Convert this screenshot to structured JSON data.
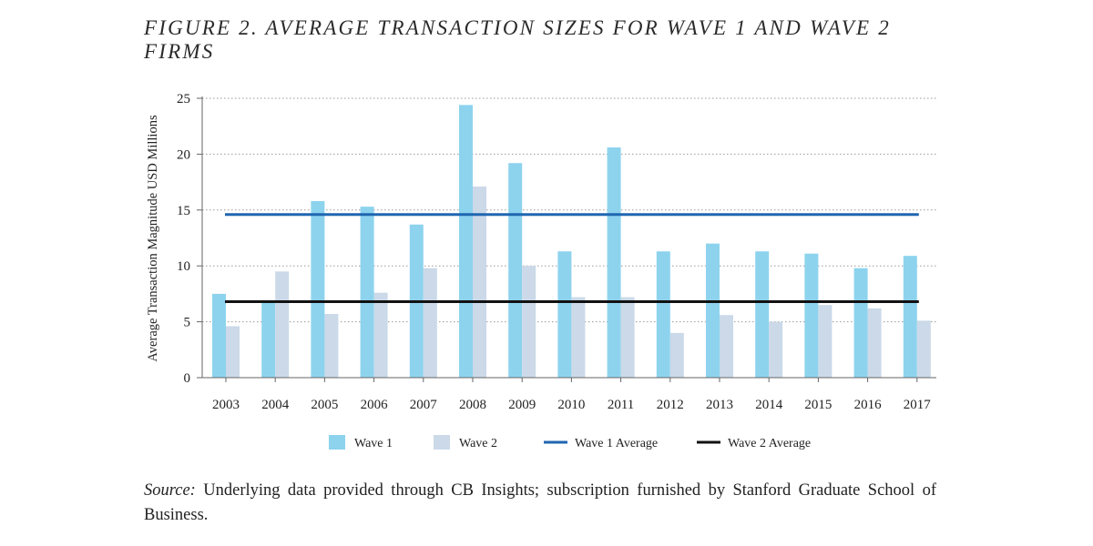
{
  "figure_title": "FIGURE 2. AVERAGE TRANSACTION SIZES FOR WAVE 1 AND WAVE 2 FIRMS",
  "source_label": "Source:",
  "source_text": " Underlying data provided through CB Insights; subscription furnished by Stanford Graduate School of Business.",
  "colors": {
    "wave1": "#8dd3ee",
    "wave2": "#cbd9e8",
    "wave1_avg": "#1f66b0",
    "wave2_avg": "#111111",
    "grid": "#9a9a9a",
    "axis": "#666666"
  },
  "chart_data": {
    "type": "bar",
    "title": "FIGURE 2. AVERAGE TRANSACTION SIZES FOR WAVE 1 AND WAVE 2 FIRMS",
    "xlabel": "",
    "ylabel": "Average Transaction Magnitude USD Millions",
    "ylim": [
      0,
      25
    ],
    "yticks": [
      "0",
      "5",
      "10",
      "15",
      "20",
      "25"
    ],
    "grid": "horizontal dotted",
    "legend_position": "bottom",
    "categories": [
      "2003",
      "2004",
      "2005",
      "2006",
      "2007",
      "2008",
      "2009",
      "2010",
      "2011",
      "2012",
      "2013",
      "2014",
      "2015",
      "2016",
      "2017"
    ],
    "series": [
      {
        "name": "Wave 1",
        "type": "bar",
        "values": [
          7.5,
          6.9,
          15.8,
          15.3,
          13.7,
          24.4,
          19.2,
          11.3,
          20.6,
          11.3,
          12.0,
          11.3,
          11.1,
          9.8,
          10.9
        ]
      },
      {
        "name": "Wave 2",
        "type": "bar",
        "values": [
          4.6,
          9.5,
          5.7,
          7.6,
          9.8,
          17.1,
          10.0,
          7.2,
          7.2,
          4.0,
          5.6,
          5.0,
          6.5,
          6.2,
          5.1
        ]
      },
      {
        "name": "Wave 1 Average",
        "type": "line",
        "value": 14.6
      },
      {
        "name": "Wave 2 Average",
        "type": "line",
        "value": 6.8
      }
    ]
  }
}
